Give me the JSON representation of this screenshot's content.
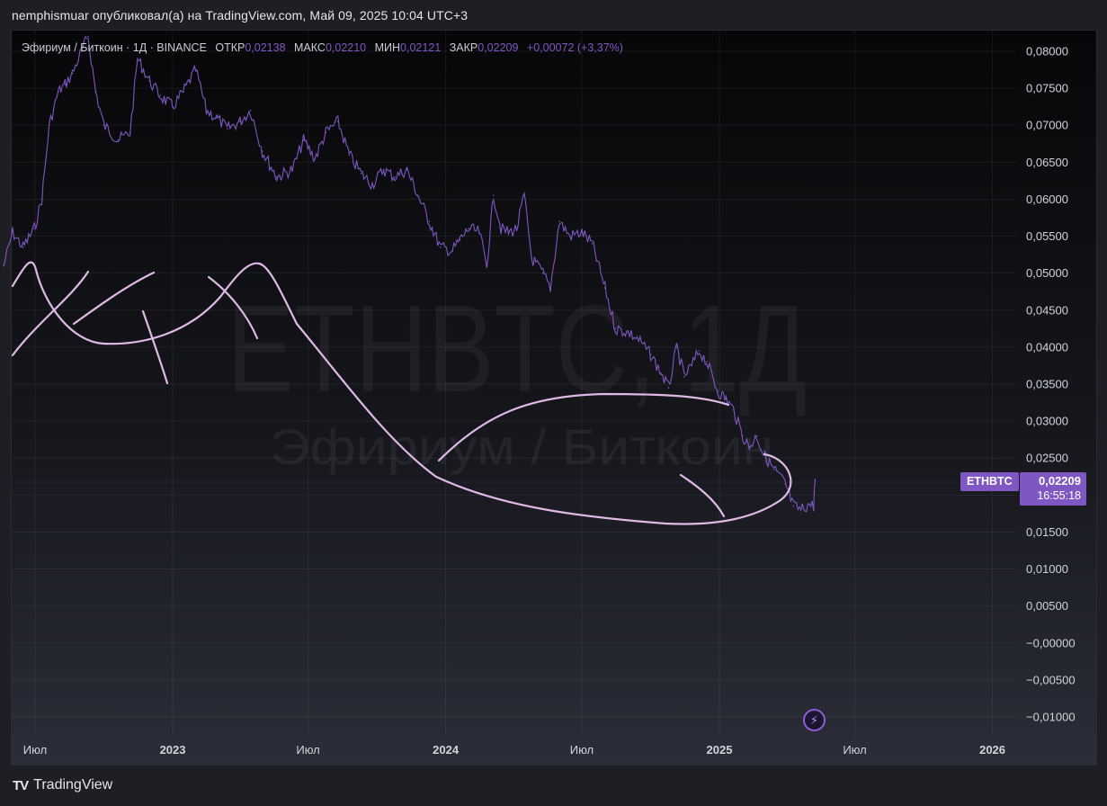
{
  "header": {
    "text": "nemphismuar опубликовал(а) на TradingView.com, Май 09, 2025 10:04 UTC+3"
  },
  "legend": {
    "title": "Эфириум / Биткоин · 1Д · BINANCE",
    "open_label": "ОТКР",
    "open": "0,02138",
    "high_label": "МАКС",
    "high": "0,02210",
    "low_label": "МИН",
    "low": "0,02121",
    "close_label": "ЗАКР",
    "close": "0,02209",
    "change": "+0,00072 (+3,37%)"
  },
  "watermark": {
    "symbol": "ETHBTC, 1Д",
    "name": "Эфириум / Биткоин"
  },
  "price_tag": {
    "symbol": "ETHBTC",
    "price": "0,02209",
    "countdown": "16:55:18"
  },
  "footer": {
    "logo": "TV",
    "brand": "TradingView"
  },
  "bolt": {
    "icon": "lightning-icon",
    "glyph": "⚡"
  },
  "colors": {
    "series": "#7e57c2",
    "drawing": "#e0b8e6",
    "accent": "#7e57c2"
  },
  "chart_data": {
    "type": "line",
    "symbol": "ETHBTC",
    "interval": "1Д",
    "ylim": [
      -0.01,
      0.08
    ],
    "y_ticks": [
      "0,08000",
      "0,07500",
      "0,07000",
      "0,06500",
      "0,06000",
      "0,05500",
      "0,05000",
      "0,04500",
      "0,04000",
      "0,03500",
      "0,03000",
      "0,02500",
      "0,02000",
      "0,01500",
      "0,01000",
      "0,00500",
      "−0,00000",
      "−0,00500",
      "−0,01000"
    ],
    "y_tick_values": [
      0.08,
      0.075,
      0.07,
      0.065,
      0.06,
      0.055,
      0.05,
      0.045,
      0.04,
      0.035,
      0.03,
      0.025,
      0.02,
      0.015,
      0.01,
      0.005,
      0,
      -0.005,
      -0.01
    ],
    "x_ticks": [
      {
        "label": "Июл",
        "date": "2022-07-01"
      },
      {
        "label": "2023",
        "date": "2023-01-01"
      },
      {
        "label": "Июл",
        "date": "2023-07-01"
      },
      {
        "label": "2024",
        "date": "2024-01-01"
      },
      {
        "label": "Июл",
        "date": "2024-07-01"
      },
      {
        "label": "2025",
        "date": "2025-01-01"
      },
      {
        "label": "Июл",
        "date": "2025-07-01"
      },
      {
        "label": "2026",
        "date": "2026-01-01"
      }
    ],
    "grid": true,
    "series": [
      {
        "values": [
          [
            "2022-05-20",
            0.051
          ],
          [
            "2022-06-01",
            0.0555
          ],
          [
            "2022-06-15",
            0.0535
          ],
          [
            "2022-06-30",
            0.056
          ],
          [
            "2022-07-10",
            0.06
          ],
          [
            "2022-07-20",
            0.07
          ],
          [
            "2022-08-01",
            0.0745
          ],
          [
            "2022-08-10",
            0.0755
          ],
          [
            "2022-08-20",
            0.077
          ],
          [
            "2022-09-01",
            0.08
          ],
          [
            "2022-09-10",
            0.082
          ],
          [
            "2022-09-20",
            0.0745
          ],
          [
            "2022-10-01",
            0.07
          ],
          [
            "2022-10-20",
            0.068
          ],
          [
            "2022-11-05",
            0.069
          ],
          [
            "2022-11-15",
            0.079
          ],
          [
            "2022-12-01",
            0.076
          ],
          [
            "2022-12-15",
            0.074
          ],
          [
            "2023-01-01",
            0.0725
          ],
          [
            "2023-01-15",
            0.0745
          ],
          [
            "2023-02-01",
            0.0775
          ],
          [
            "2023-02-15",
            0.072
          ],
          [
            "2023-03-01",
            0.071
          ],
          [
            "2023-03-15",
            0.0695
          ],
          [
            "2023-04-01",
            0.0705
          ],
          [
            "2023-04-15",
            0.072
          ],
          [
            "2023-05-01",
            0.0665
          ],
          [
            "2023-05-20",
            0.063
          ],
          [
            "2023-06-10",
            0.064
          ],
          [
            "2023-06-25",
            0.068
          ],
          [
            "2023-07-10",
            0.0655
          ],
          [
            "2023-07-25",
            0.069
          ],
          [
            "2023-08-10",
            0.0705
          ],
          [
            "2023-08-25",
            0.066
          ],
          [
            "2023-09-10",
            0.0635
          ],
          [
            "2023-09-25",
            0.062
          ],
          [
            "2023-10-10",
            0.064
          ],
          [
            "2023-10-25",
            0.063
          ],
          [
            "2023-11-10",
            0.064
          ],
          [
            "2023-11-25",
            0.0605
          ],
          [
            "2023-12-10",
            0.057
          ],
          [
            "2023-12-25",
            0.0535
          ],
          [
            "2024-01-10",
            0.053
          ],
          [
            "2024-01-20",
            0.0545
          ],
          [
            "2024-02-01",
            0.056
          ],
          [
            "2024-02-15",
            0.0555
          ],
          [
            "2024-02-25",
            0.051
          ],
          [
            "2024-03-05",
            0.0605
          ],
          [
            "2024-03-15",
            0.056
          ],
          [
            "2024-03-25",
            0.0555
          ],
          [
            "2024-04-05",
            0.056
          ],
          [
            "2024-04-15",
            0.0605
          ],
          [
            "2024-04-25",
            0.052
          ],
          [
            "2024-05-10",
            0.05
          ],
          [
            "2024-05-20",
            0.048
          ],
          [
            "2024-06-01",
            0.057
          ],
          [
            "2024-06-15",
            0.055
          ],
          [
            "2024-07-01",
            0.0555
          ],
          [
            "2024-07-15",
            0.054
          ],
          [
            "2024-08-01",
            0.048
          ],
          [
            "2024-08-15",
            0.0425
          ],
          [
            "2024-09-01",
            0.042
          ],
          [
            "2024-09-15",
            0.041
          ],
          [
            "2024-10-01",
            0.039
          ],
          [
            "2024-10-15",
            0.0365
          ],
          [
            "2024-10-25",
            0.0345
          ],
          [
            "2024-11-05",
            0.04
          ],
          [
            "2024-11-15",
            0.036
          ],
          [
            "2024-11-25",
            0.0375
          ],
          [
            "2024-12-05",
            0.0395
          ],
          [
            "2024-12-15",
            0.038
          ],
          [
            "2024-12-30",
            0.034
          ],
          [
            "2025-01-10",
            0.033
          ],
          [
            "2025-01-20",
            0.0315
          ],
          [
            "2025-02-01",
            0.028
          ],
          [
            "2025-02-10",
            0.0265
          ],
          [
            "2025-02-20",
            0.028
          ],
          [
            "2025-03-01",
            0.0255
          ],
          [
            "2025-03-15",
            0.0235
          ],
          [
            "2025-03-30",
            0.0215
          ],
          [
            "2025-04-10",
            0.0185
          ],
          [
            "2025-04-20",
            0.018
          ],
          [
            "2025-05-01",
            0.0188
          ],
          [
            "2025-05-07",
            0.0185
          ],
          [
            "2025-05-08",
            0.0205
          ],
          [
            "2025-05-09",
            0.02209
          ]
        ]
      }
    ]
  }
}
